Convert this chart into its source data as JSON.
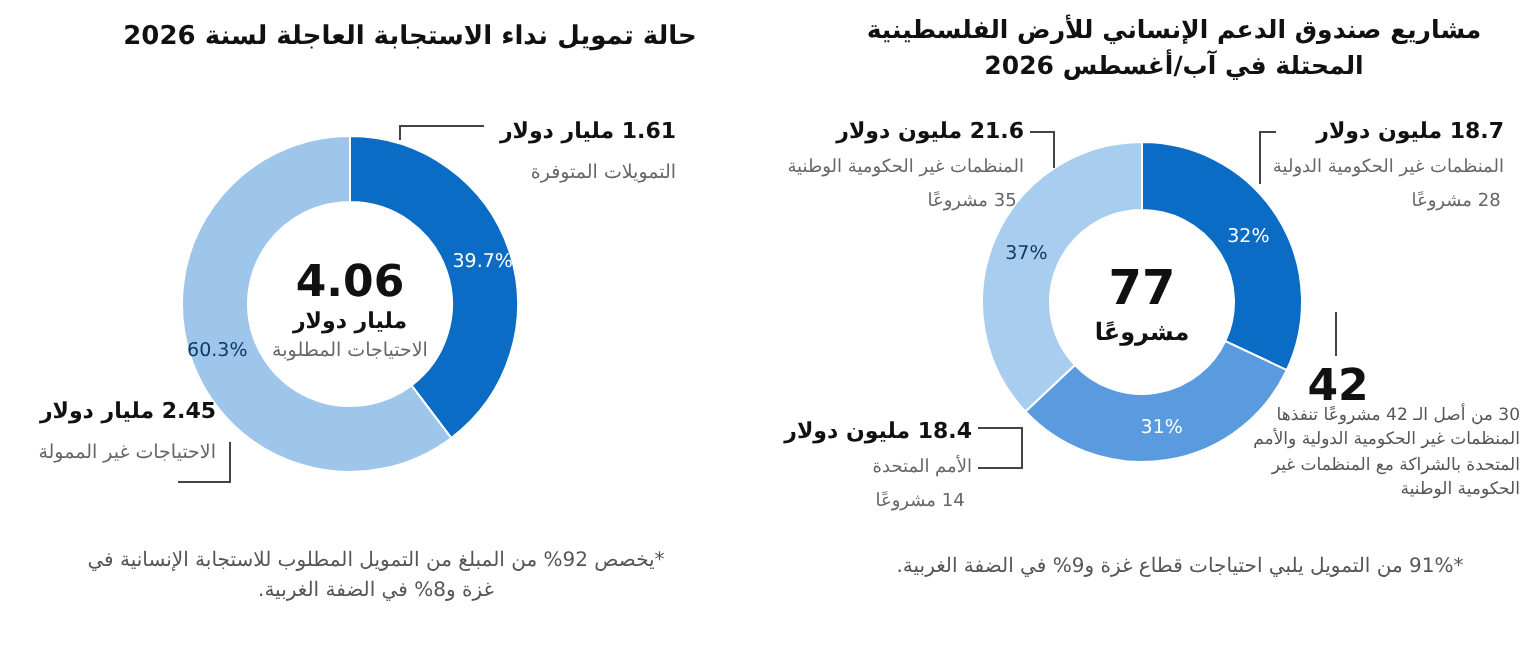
{
  "chart_data": [
    {
      "type": "donut",
      "title": "مشاريع صندوق الدعم الإنساني للأرض الفلسطينية المحتلة في آب/أغسطس 2026",
      "categories": [
        "المنظمات غير الحكومية الدولية",
        "الأمم المتحدة",
        "المنظمات غير الحكومية الوطنية"
      ],
      "values": [
        32,
        31,
        37
      ],
      "colors": [
        "#0a6cc4",
        "#5a9be0",
        "#a9cdee"
      ],
      "value_labels": [
        "32%",
        "31%",
        "37%"
      ],
      "annotations": [
        "18.7 مليون دولار",
        "28 مشروعًا",
        "18.4 مليون دولار",
        "14 مشروعًا",
        "21.6 مليون دولار",
        "35 مشروعًا",
        "77",
        "مشروعًا",
        "42",
        "30 من أصل الـ 42 مشروعًا تنفذها المنظمات غير الحكومية الدولية والأمم المتحدة بالشراكة مع المنظمات غير الحكومية الوطنية",
        "*91% من التمويل يلبي احتياجات قطاع غزة و9% في الضفة الغربية."
      ]
    },
    {
      "type": "donut",
      "title": "حالة تمويل نداء الاستجابة العاجلة لسنة 2026",
      "categories": [
        "التمويلات المتوفرة",
        "الاحتياجات غير الممولة"
      ],
      "values": [
        39.7,
        60.3
      ],
      "colors": [
        "#0a6cc4",
        "#9ec5ea"
      ],
      "value_labels": [
        "39.7%",
        "60.3%"
      ],
      "annotations": [
        "1.61 مليار دولار",
        "2.45 مليار دولار",
        "4.06",
        "مليار دولار",
        "الاحتياجات المطلوبة",
        "*يخصص 92% من المبلغ من التمويل المطلوب للاستجابة الإنسانية في غزة و8% في الضفة الغربية."
      ]
    }
  ]
}
